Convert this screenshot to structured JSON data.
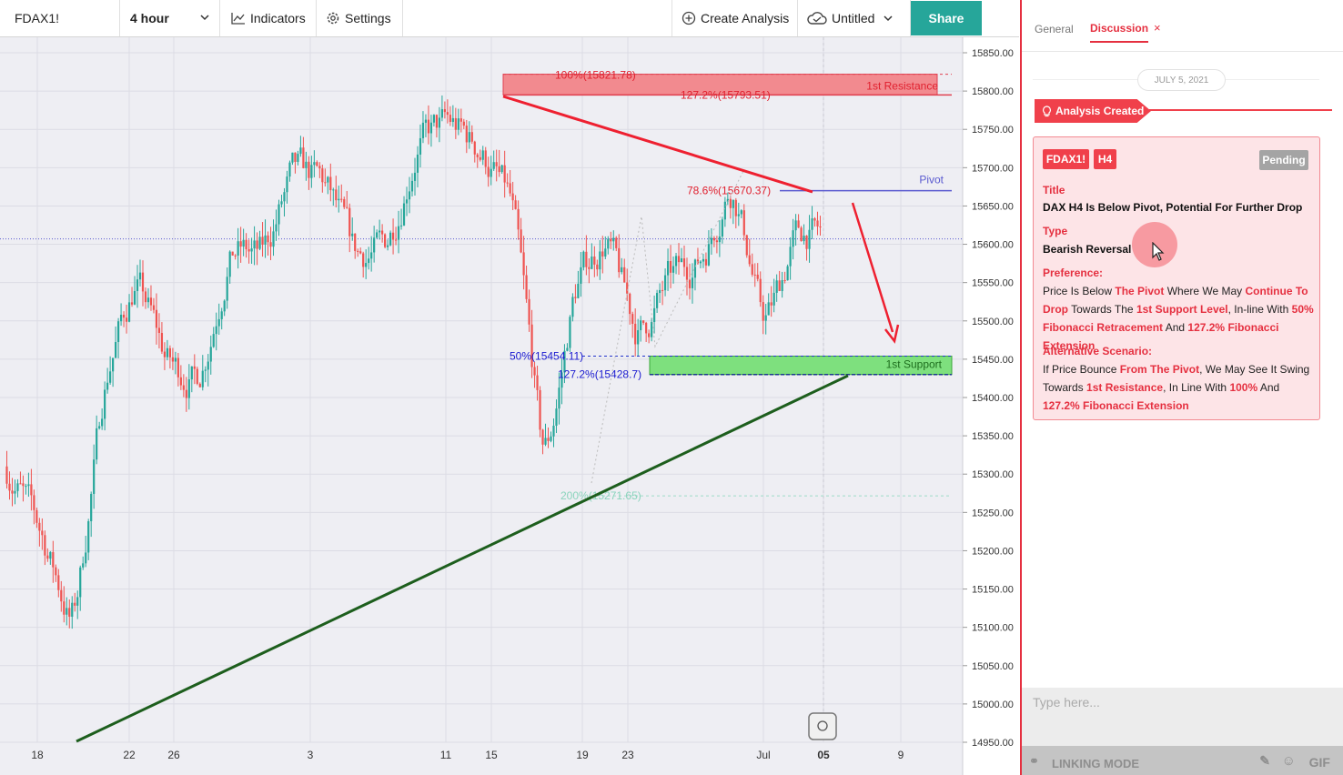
{
  "toolbar": {
    "symbol": "FDAX1!",
    "interval": "4 hour",
    "indicators": "Indicators",
    "settings": "Settings",
    "create_analysis": "Create Analysis",
    "layout_name": "Untitled",
    "share": "Share"
  },
  "chart_data": {
    "type": "candlestick",
    "instrument": "FDAX1!",
    "timeframe": "4 hour",
    "x_ticks": [
      "18",
      "22",
      "26",
      "3",
      "11",
      "15",
      "19",
      "23",
      "Jul",
      "05",
      "9"
    ],
    "y_ticks": [
      15850,
      15800,
      15750,
      15700,
      15650,
      15600,
      15550,
      15500,
      15450,
      15400,
      15350,
      15300,
      15250,
      15200,
      15150,
      15100,
      15050,
      15000,
      14950
    ],
    "ylim": [
      14950,
      15850
    ],
    "grid": true,
    "close_price_line": 15607,
    "series_sketch": [
      {
        "t": "18",
        "close": 15300
      },
      {
        "t": "19",
        "close": 15220
      },
      {
        "t": "20",
        "close": 15090
      },
      {
        "t": "22",
        "close": 15440
      },
      {
        "t": "24",
        "close": 15560
      },
      {
        "t": "26",
        "close": 15440
      },
      {
        "t": "28",
        "close": 15420
      },
      {
        "t": "1",
        "close": 15600
      },
      {
        "t": "3",
        "close": 15580
      },
      {
        "t": "5",
        "close": 15700
      },
      {
        "t": "7",
        "close": 15680
      },
      {
        "t": "9",
        "close": 15580
      },
      {
        "t": "11",
        "close": 15600
      },
      {
        "t": "13",
        "close": 15740
      },
      {
        "t": "15",
        "close": 15760
      },
      {
        "t": "17",
        "close": 15720
      },
      {
        "t": "18b",
        "close": 15650
      },
      {
        "t": "19",
        "close": 15290
      },
      {
        "t": "21",
        "close": 15560
      },
      {
        "t": "23",
        "close": 15610
      },
      {
        "t": "24",
        "close": 15470
      },
      {
        "t": "26b",
        "close": 15560
      },
      {
        "t": "28b",
        "close": 15580
      },
      {
        "t": "30",
        "close": 15690
      },
      {
        "t": "Jul",
        "close": 15480
      },
      {
        "t": "2",
        "close": 15620
      },
      {
        "t": "05",
        "close": 15610
      }
    ],
    "annotations": {
      "fib_100": "100%(15821.78)",
      "fib_1272_top": "127.2%(15793.51)",
      "resistance": "1st Resistance",
      "fib_786": "78.6%(15670.37)",
      "pivot": "Pivot",
      "fib_50": "50%(15454.11)",
      "fib_1272_bottom": "127.2%(15428.7)",
      "support": "1st Support",
      "fib_200": "200%(15271.65)"
    },
    "levels": {
      "resistance_zone": [
        15795,
        15822
      ],
      "pivot": 15670,
      "support_zone": [
        15430,
        15454
      ],
      "fib_200": 15271.65
    }
  },
  "panel": {
    "tab_general": "General",
    "tab_discussion": "Discussion",
    "tab_close": "×",
    "date": "JULY 5, 2021",
    "event": "Analysis Created",
    "card": {
      "symbol": "FDAX1!",
      "timeframe": "H4",
      "status": "Pending",
      "title_label": "Title",
      "title": "DAX H4 Is Below Pivot, Potential For Further Drop",
      "type_label": "Type",
      "type": "Bearish Reversal",
      "pref_label": "Preference:",
      "pref": [
        {
          "t": "Price Is Below ",
          "h": false
        },
        {
          "t": "The Pivot",
          "h": true
        },
        {
          "t": " Where We May ",
          "h": false
        },
        {
          "t": "Continue To Drop",
          "h": true
        },
        {
          "t": " Towards The ",
          "h": false
        },
        {
          "t": "1st Support Level",
          "h": true
        },
        {
          "t": ", In-line With ",
          "h": false
        },
        {
          "t": "50% Fibonacci Retracement",
          "h": true
        },
        {
          "t": " And ",
          "h": false
        },
        {
          "t": "127.2% Fibonacci Extension",
          "h": true
        }
      ],
      "alt_label": "Alternative Scenario:",
      "alt": [
        {
          "t": "If Price Bounce ",
          "h": false
        },
        {
          "t": "From The Pivot",
          "h": true
        },
        {
          "t": ", We May See It Swing Towards ",
          "h": false
        },
        {
          "t": "1st Resistance",
          "h": true
        },
        {
          "t": ", In Line With ",
          "h": false
        },
        {
          "t": "100%",
          "h": true
        },
        {
          "t": " And ",
          "h": false
        },
        {
          "t": "127.2% Fibonacci Extension",
          "h": true
        }
      ]
    },
    "composer_placeholder": "Type here...",
    "linking_mode": "LINKING MODE",
    "gif": "GIF"
  },
  "colors": {
    "up": "#26a69a",
    "down": "#ef5350",
    "accent": "#e53040",
    "support": "#7ee07e",
    "resistance": "#f28a8f",
    "trendline": "#1d5e1d",
    "pivot": "#5a5ad0"
  }
}
